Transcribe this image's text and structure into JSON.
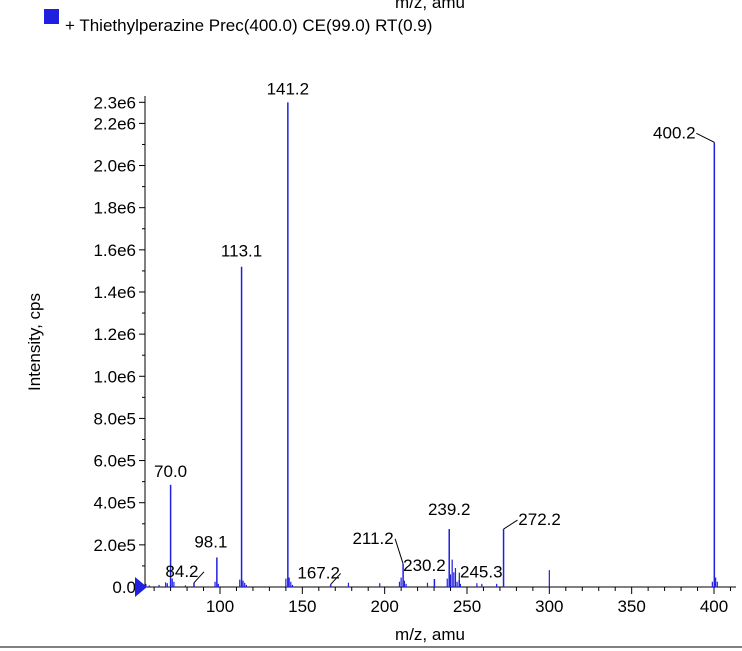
{
  "top_cut_label": "m/z, amu",
  "legend": {
    "swatch_color": "#1f1fe0",
    "text": "+ Thiethylperazine Prec(400.0) CE(99.0) RT(0.9)"
  },
  "colors": {
    "series": "#1f1fe0",
    "axis": "#000000",
    "leader": "#000000"
  },
  "chart_data": {
    "type": "bar",
    "title": "",
    "xlabel": "m/z, amu",
    "ylabel": "Intensity, cps",
    "xlim": [
      46,
      412
    ],
    "ylim": [
      0,
      2330000
    ],
    "x_ticks": [
      100,
      150,
      200,
      250,
      300,
      350,
      400
    ],
    "x_tick_labels": [
      "100",
      "150",
      "200",
      "250",
      "300",
      "350",
      "400"
    ],
    "y_ticks": [
      0,
      200000,
      400000,
      600000,
      800000,
      1000000,
      1200000,
      1400000,
      1600000,
      1800000,
      2000000,
      2200000,
      2300000
    ],
    "y_tick_labels": [
      "0.0",
      "2.0e5",
      "4.0e5",
      "6.0e5",
      "8.0e5",
      "1.0e6",
      "1.2e6",
      "1.4e6",
      "1.6e6",
      "1.8e6",
      "2.0e6",
      "2.2e6",
      "2.3e6"
    ],
    "peaks": [
      {
        "mz": 70.0,
        "intensity": 485000,
        "label": "70.0"
      },
      {
        "mz": 84.2,
        "intensity": 20000,
        "label": "84.2"
      },
      {
        "mz": 98.1,
        "intensity": 140000,
        "label": "98.1"
      },
      {
        "mz": 113.1,
        "intensity": 1520000,
        "label": "113.1"
      },
      {
        "mz": 141.2,
        "intensity": 2300000,
        "label": "141.2"
      },
      {
        "mz": 167.2,
        "intensity": 12000,
        "label": "167.2"
      },
      {
        "mz": 211.2,
        "intensity": 110000,
        "label": "211.2"
      },
      {
        "mz": 230.2,
        "intensity": 38000,
        "label": "230.2"
      },
      {
        "mz": 239.2,
        "intensity": 275000,
        "label": "239.2"
      },
      {
        "mz": 245.3,
        "intensity": 35000,
        "label": "245.3"
      },
      {
        "mz": 272.2,
        "intensity": 275000,
        "label": "272.2"
      },
      {
        "mz": 400.2,
        "intensity": 2110000,
        "label": "400.2"
      }
    ],
    "minor_peaks": [
      {
        "mz": 55.0,
        "intensity": 15000
      },
      {
        "mz": 57.0,
        "intensity": 8000
      },
      {
        "mz": 63.0,
        "intensity": 10000
      },
      {
        "mz": 67.0,
        "intensity": 22000
      },
      {
        "mz": 68.0,
        "intensity": 18000
      },
      {
        "mz": 71.0,
        "intensity": 40000
      },
      {
        "mz": 72.0,
        "intensity": 25000
      },
      {
        "mz": 79.0,
        "intensity": 8000
      },
      {
        "mz": 97.0,
        "intensity": 25000
      },
      {
        "mz": 99.0,
        "intensity": 15000
      },
      {
        "mz": 112.0,
        "intensity": 35000
      },
      {
        "mz": 114.0,
        "intensity": 30000
      },
      {
        "mz": 115.0,
        "intensity": 20000
      },
      {
        "mz": 116.0,
        "intensity": 10000
      },
      {
        "mz": 140.0,
        "intensity": 40000
      },
      {
        "mz": 142.0,
        "intensity": 45000
      },
      {
        "mz": 143.0,
        "intensity": 25000
      },
      {
        "mz": 144.0,
        "intensity": 10000
      },
      {
        "mz": 178.0,
        "intensity": 20000
      },
      {
        "mz": 197.0,
        "intensity": 18000
      },
      {
        "mz": 209.0,
        "intensity": 25000
      },
      {
        "mz": 210.0,
        "intensity": 45000
      },
      {
        "mz": 212.0,
        "intensity": 30000
      },
      {
        "mz": 213.0,
        "intensity": 15000
      },
      {
        "mz": 226.0,
        "intensity": 20000
      },
      {
        "mz": 238.0,
        "intensity": 40000
      },
      {
        "mz": 240.0,
        "intensity": 60000
      },
      {
        "mz": 241.0,
        "intensity": 130000
      },
      {
        "mz": 242.0,
        "intensity": 70000
      },
      {
        "mz": 243.0,
        "intensity": 90000
      },
      {
        "mz": 244.0,
        "intensity": 25000
      },
      {
        "mz": 246.0,
        "intensity": 15000
      },
      {
        "mz": 256.0,
        "intensity": 18000
      },
      {
        "mz": 259.0,
        "intensity": 15000
      },
      {
        "mz": 268.0,
        "intensity": 15000
      },
      {
        "mz": 300.0,
        "intensity": 80000
      },
      {
        "mz": 399.0,
        "intensity": 25000
      },
      {
        "mz": 401.0,
        "intensity": 45000
      },
      {
        "mz": 402.0,
        "intensity": 25000
      }
    ]
  }
}
